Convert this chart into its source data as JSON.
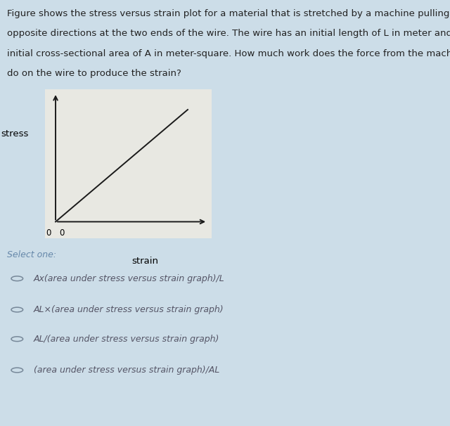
{
  "page_bg": "#ccdde8",
  "graph_bg": "#e8e8e2",
  "graph_line_color": "#1a1a1a",
  "text_color": "#222222",
  "option_text_color": "#555566",
  "select_color": "#6688aa",
  "title_text_line1": "Figure shows the stress versus strain plot for a material that is stretched by a machine pulling in",
  "title_text_line2": "opposite directions at the two ends of the wire. The wire has an initial length of L in meter and an",
  "title_text_line3": "initial cross-sectional area of A in meter-square. How much work does the force from the machine",
  "title_text_line4": "do on the wire to produce the strain?",
  "title_fontsize": 9.5,
  "xlabel": "strain",
  "ylabel": "stress",
  "origin_label": "0",
  "select_one": "Select one:",
  "options": [
    "Ax(area under stress versus strain graph)/L",
    "AL×(area under stress versus strain graph)",
    "AL/(area under stress versus strain graph)",
    "(area under stress versus strain graph)/AL"
  ],
  "option_fontsize": 9.0,
  "select_fontsize": 9.0,
  "circle_color": "#778899"
}
